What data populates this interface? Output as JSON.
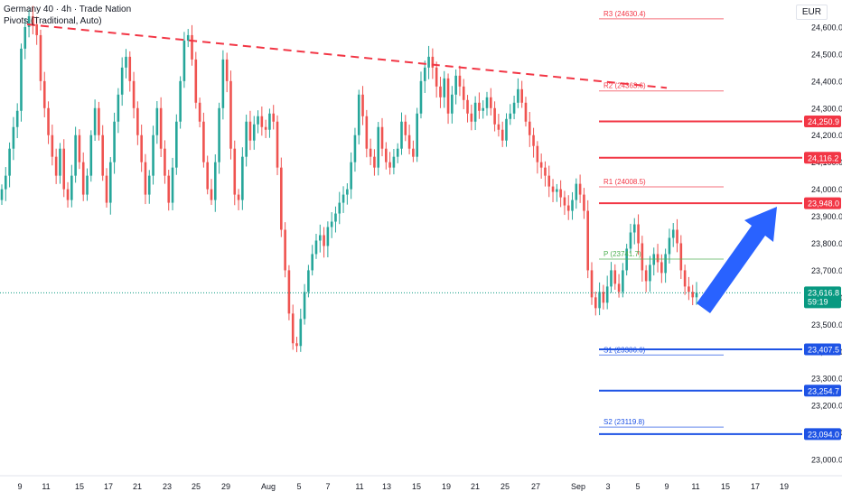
{
  "header": {
    "title": "Germany 40 · 4h · Trade Nation",
    "subtitle": "Pivots (Traditional, Auto)"
  },
  "currency": "EUR",
  "colors": {
    "up": "#26a69a",
    "down": "#ef5350",
    "resistance": "#f23645",
    "support": "#1e53e5",
    "pivot": "#4caf50",
    "arrow": "#2962ff",
    "price": "#089981"
  },
  "chart_data": {
    "type": "candlestick",
    "ylim": [
      22960,
      24680
    ],
    "yticks": [
      23000,
      23100,
      23200,
      23300,
      23400,
      23500,
      23600,
      23700,
      23800,
      23900,
      24000,
      24100,
      24200,
      24300,
      24400,
      24500,
      24600
    ],
    "ytick_labels": [
      "23,000.0",
      "23,100.0",
      "23,200.0",
      "23,300.0",
      "23,400.0",
      "23,500.0",
      "23,600.0",
      "23,700.0",
      "23,800.0",
      "23,900.0",
      "24,000.0",
      "24,100.0",
      "24,200.0",
      "24,300.0",
      "24,400.0",
      "24,500.0",
      "24,600.0"
    ],
    "x_labels": [
      "9",
      "11",
      "15",
      "17",
      "21",
      "23",
      "25",
      "29",
      "Aug",
      "5",
      "7",
      "11",
      "13",
      "15",
      "19",
      "21",
      "25",
      "27",
      "Sep",
      "3",
      "5",
      "9",
      "11",
      "15",
      "17",
      "19"
    ],
    "current_price": {
      "value": 23616.8,
      "label": "23,616.8",
      "countdown": "59:19"
    },
    "horizontal_levels": [
      {
        "value": 24250.9,
        "label": "24,250.9",
        "kind": "resistance"
      },
      {
        "value": 24116.2,
        "label": "24,116.2",
        "kind": "resistance"
      },
      {
        "value": 23948.0,
        "label": "23,948.0",
        "kind": "resistance"
      },
      {
        "value": 23407.5,
        "label": "23,407.5",
        "kind": "support"
      },
      {
        "value": 23254.7,
        "label": "23,254.7",
        "kind": "support"
      },
      {
        "value": 23094.0,
        "label": "23,094.0",
        "kind": "support"
      }
    ],
    "pivots": [
      {
        "name": "R3",
        "value": 24630.4,
        "label": "R3 (24630.4)",
        "kind": "resistance"
      },
      {
        "name": "R2",
        "value": 24363.6,
        "label": "R2 (24363.6)",
        "kind": "resistance"
      },
      {
        "name": "R1",
        "value": 24008.5,
        "label": "R1 (24008.5)",
        "kind": "resistance"
      },
      {
        "name": "P",
        "value": 23741.7,
        "label": "P (23741.7)",
        "kind": "pivot"
      },
      {
        "name": "S1",
        "value": 23386.6,
        "label": "S1 (23386.6)",
        "kind": "support"
      },
      {
        "name": "S2",
        "value": 23119.8,
        "label": "S2 (23119.8)",
        "kind": "support"
      }
    ],
    "trendline": {
      "from": 24610,
      "to": 24375
    },
    "closes": [
      24000,
      24050,
      24150,
      24230,
      24290,
      24520,
      24600,
      24640,
      24610,
      24570,
      24400,
      24300,
      24200,
      24120,
      24050,
      24150,
      24000,
      23960,
      24050,
      24200,
      24100,
      23980,
      24050,
      24200,
      24300,
      24200,
      24050,
      23950,
      24100,
      24250,
      24350,
      24450,
      24490,
      24400,
      24300,
      24200,
      24100,
      23980,
      24050,
      24200,
      24300,
      24150,
      24050,
      23950,
      24080,
      24250,
      24400,
      24550,
      24570,
      24480,
      24320,
      24250,
      24100,
      24000,
      23960,
      24100,
      24300,
      24480,
      24400,
      24150,
      23980,
      23960,
      24120,
      24250,
      24180,
      24240,
      24270,
      24230,
      24220,
      24280,
      24250,
      24080,
      23850,
      23700,
      23540,
      23430,
      23420,
      23520,
      23620,
      23700,
      23760,
      23810,
      23830,
      23790,
      23860,
      23880,
      23910,
      23950,
      23980,
      24000,
      24100,
      24200,
      24350,
      24270,
      24150,
      24120,
      24080,
      24230,
      24150,
      24100,
      24080,
      24120,
      24150,
      24250,
      24200,
      24150,
      24120,
      24280,
      24400,
      24450,
      24490,
      24450,
      24380,
      24340,
      24410,
      24280,
      24350,
      24420,
      24380,
      24330,
      24280,
      24250,
      24320,
      24290,
      24300,
      24340,
      24300,
      24240,
      24220,
      24180,
      24260,
      24280,
      24320,
      24370,
      24320,
      24250,
      24200,
      24160,
      24100,
      24080,
      24050,
      24010,
      23990,
      24000,
      23970,
      23940,
      23920,
      23960,
      24020,
      23980,
      23920,
      23700,
      23600,
      23560,
      23620,
      23580,
      23640,
      23700,
      23650,
      23620,
      23700,
      23780,
      23840,
      23870,
      23800,
      23700,
      23660,
      23720,
      23760,
      23730,
      23690,
      23760,
      23820,
      23850,
      23800,
      23700,
      23640,
      23620,
      23600,
      23616.8
    ]
  }
}
